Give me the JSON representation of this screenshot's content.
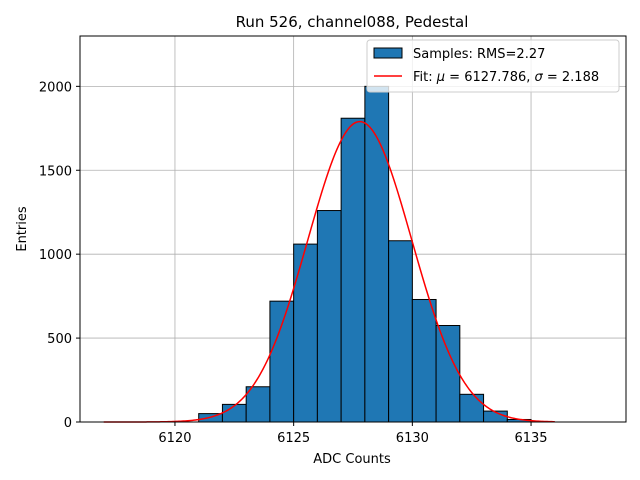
{
  "chart_data": {
    "type": "bar",
    "title": "Run 526, channel088, Pedestal",
    "xlabel": "ADC Counts",
    "ylabel": "Entries",
    "xlim": [
      6116.0,
      6139.0
    ],
    "ylim": [
      0,
      2300
    ],
    "xticks": [
      6120,
      6125,
      6130,
      6135
    ],
    "yticks": [
      0,
      500,
      1000,
      1500,
      2000
    ],
    "grid": true,
    "legend_position": "top-right",
    "histogram": {
      "name": "Samples: RMS=2.27",
      "color": "#1f77b4",
      "edgecolor": "#000000",
      "bin_start": 6121,
      "bin_width": 1,
      "values": [
        50,
        105,
        210,
        720,
        1060,
        1260,
        1810,
        2000,
        1080,
        730,
        575,
        165,
        65,
        15
      ]
    },
    "fit": {
      "name": "Fit: μ = 6127.786, σ = 2.188",
      "label_prefix": "Fit: ",
      "mu_symbol": "μ",
      "mu_text": " = 6127.786, ",
      "sigma_symbol": "σ",
      "sigma_text": " = 2.188",
      "color": "#ff0000",
      "mu": 6127.786,
      "sigma": 2.188,
      "amplitude": 1790,
      "x_range": [
        6117,
        6136
      ]
    }
  }
}
